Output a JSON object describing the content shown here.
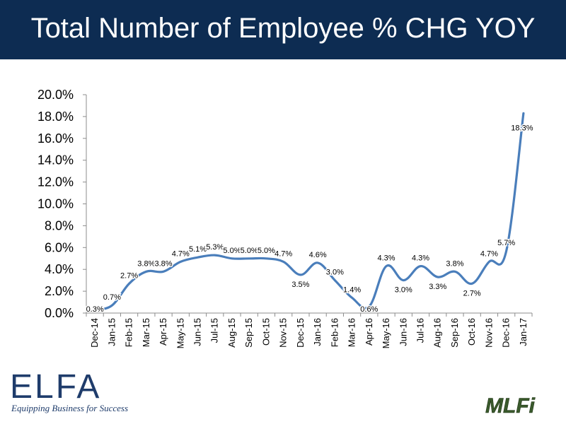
{
  "slide": {
    "title": "Total Number of Employee % CHG YOY",
    "header_color": "#0d2c52",
    "line_color": "#4a7ebb"
  },
  "chart_data": {
    "type": "line",
    "title": "Total Number of Employee % CHG YOY",
    "xlabel": "",
    "ylabel": "",
    "ylim": [
      0,
      20
    ],
    "y_ticks": [
      "0.0%",
      "2.0%",
      "4.0%",
      "6.0%",
      "8.0%",
      "10.0%",
      "12.0%",
      "14.0%",
      "16.0%",
      "18.0%",
      "20.0%"
    ],
    "categories": [
      "Dec-14",
      "Jan-15",
      "Feb-15",
      "Mar-15",
      "Apr-15",
      "May-15",
      "Jun-15",
      "Jul-15",
      "Aug-15",
      "Sep-15",
      "Oct-15",
      "Nov-15",
      "Dec-15",
      "Jan-16",
      "Feb-16",
      "Mar-16",
      "Apr-16",
      "May-16",
      "Jun-16",
      "Jul-16",
      "Aug-16",
      "Sep-16",
      "Oct-16",
      "Nov-16",
      "Dec-16",
      "Jan-17"
    ],
    "values": [
      0.3,
      0.7,
      2.7,
      3.8,
      3.8,
      4.7,
      5.1,
      5.3,
      5.0,
      5.0,
      5.0,
      4.7,
      3.5,
      4.6,
      3.0,
      1.4,
      0.6,
      4.3,
      3.0,
      4.3,
      3.3,
      3.8,
      2.7,
      4.7,
      5.7,
      18.3
    ],
    "data_labels": [
      "0.3%",
      "0.7%",
      "2.7%",
      "3.8%",
      "3.8%",
      "4.7%",
      "5.1%",
      "5.3%",
      "5.0%",
      "5.0%",
      "5.0%",
      "4.7%",
      "3.5%",
      "4.6%",
      "3.0%",
      "1.4%",
      "0.6%",
      "4.3%",
      "3.0%",
      "4.3%",
      "3.3%",
      "3.8%",
      "2.7%",
      "4.7%",
      "5.7%",
      "18.3%"
    ],
    "grid": false,
    "legend": "none"
  },
  "logos": {
    "elfa_word": "ELFA",
    "elfa_tagline": "Equipping Business for Success",
    "mlfi": "MLFi"
  }
}
